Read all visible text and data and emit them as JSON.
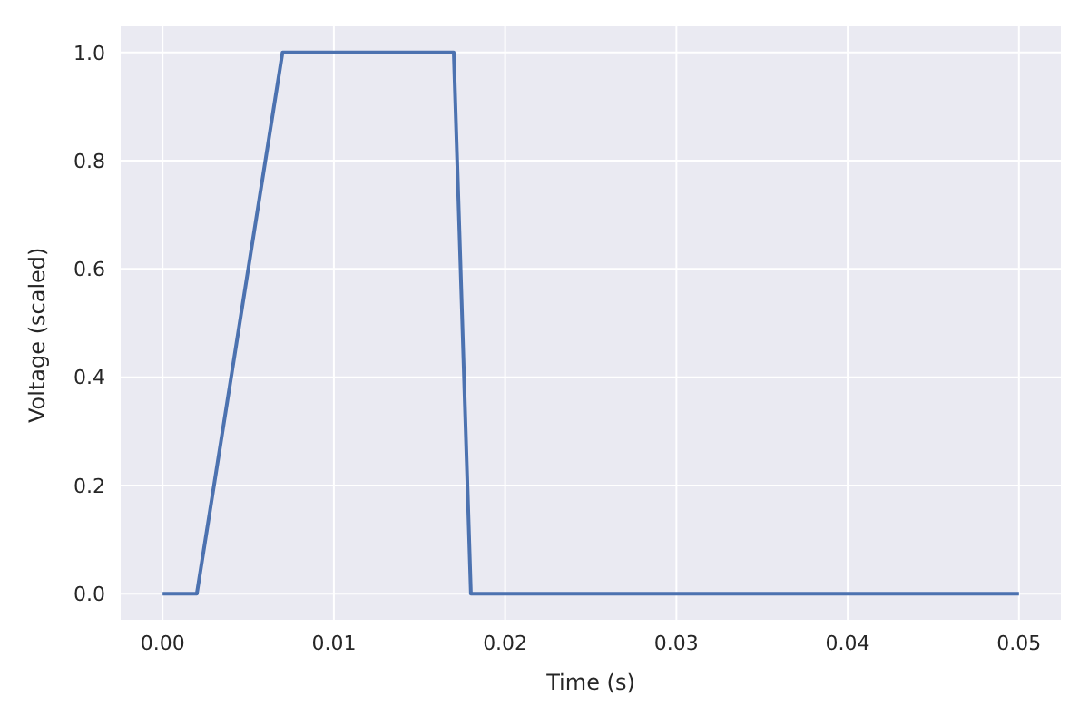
{
  "chart_data": {
    "type": "line",
    "xlabel": "Time (s)",
    "ylabel": "Voltage (scaled)",
    "x": [
      0,
      0.002,
      0.007,
      0.017,
      0.018,
      0.05
    ],
    "series": [
      {
        "color": "#4c72b0",
        "values": [
          0,
          0,
          1,
          1,
          0,
          0
        ]
      }
    ],
    "xlim": [
      -0.0025,
      0.0525
    ],
    "ylim": [
      -0.05,
      1.05
    ],
    "xticks": [
      {
        "value": 0,
        "label": "0.00"
      },
      {
        "value": 0.01,
        "label": "0.01"
      },
      {
        "value": 0.02,
        "label": "0.02"
      },
      {
        "value": 0.03,
        "label": "0.03"
      },
      {
        "value": 0.04,
        "label": "0.04"
      },
      {
        "value": 0.05,
        "label": "0.05"
      }
    ],
    "yticks": [
      {
        "value": 0,
        "label": "0.0"
      },
      {
        "value": 0.2,
        "label": "0.2"
      },
      {
        "value": 0.4,
        "label": "0.4"
      },
      {
        "value": 0.6,
        "label": "0.6"
      },
      {
        "value": 0.8,
        "label": "0.8"
      },
      {
        "value": 1,
        "label": "1.0"
      }
    ],
    "grid": true,
    "legend": false,
    "marker": "none",
    "line_style": "solid"
  }
}
